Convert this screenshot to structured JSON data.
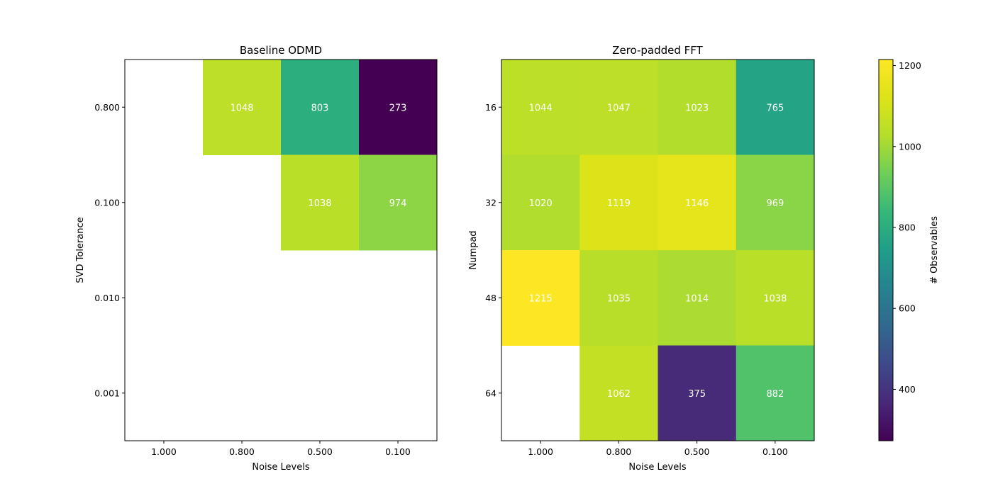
{
  "colors": {
    "cell_text": "#ffffff",
    "frame": "#000000"
  },
  "chart_data": [
    {
      "type": "heatmap",
      "title": "Baseline ODMD",
      "xlabel": "Noise Levels",
      "ylabel": "SVD Tolerance",
      "x_categories": [
        "1.000",
        "0.800",
        "0.500",
        "0.100"
      ],
      "y_categories": [
        "0.800",
        "0.100",
        "0.010",
        "0.001"
      ],
      "values": [
        [
          null,
          1048,
          803,
          273
        ],
        [
          null,
          null,
          1038,
          974
        ],
        [
          null,
          null,
          null,
          null
        ],
        [
          null,
          null,
          null,
          null
        ]
      ],
      "missing_cells": "blank (white)",
      "shared_colorbar": true
    },
    {
      "type": "heatmap",
      "title": "Zero-padded FFT",
      "xlabel": "Noise Levels",
      "ylabel": "Numpad",
      "x_categories": [
        "1.000",
        "0.800",
        "0.500",
        "0.100"
      ],
      "y_categories": [
        "16",
        "32",
        "48",
        "64"
      ],
      "values": [
        [
          1044,
          1047,
          1023,
          765
        ],
        [
          1020,
          1119,
          1146,
          969
        ],
        [
          1215,
          1035,
          1014,
          1038
        ],
        [
          null,
          1062,
          375,
          882
        ]
      ],
      "missing_cells": "blank (white)",
      "shared_colorbar": true
    }
  ],
  "colorbar": {
    "label": "# Observables",
    "colormap": "viridis",
    "range": [
      273,
      1215
    ],
    "ticks": [
      400,
      600,
      800,
      1000,
      1200
    ]
  }
}
